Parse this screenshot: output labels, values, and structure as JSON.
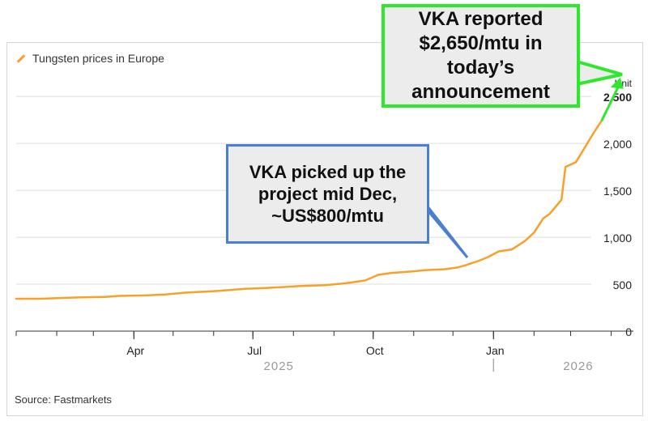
{
  "legend": {
    "label": "Tungsten prices in Europe",
    "color": "#f7a02a"
  },
  "source": "Source: Fastmarkets",
  "callouts": {
    "blue": "VKA picked up the\nproject mid Dec,\n~US$800/mtu",
    "green": "VKA reported\n$2,650/mtu in\ntoday’s\nannouncement"
  },
  "colors": {
    "line": "#f7a02a",
    "blue_callout": "#4a7fd1",
    "green_callout": "#2ee82e"
  },
  "chart_data": {
    "type": "line",
    "title": "",
    "unit_label": "Unit",
    "series": [
      {
        "name": "Tungsten prices in Europe",
        "x": [
          "2025-01-01",
          "2025-01-20",
          "2025-02-10",
          "2025-02-20",
          "2025-03-10",
          "2025-03-20",
          "2025-04-10",
          "2025-04-25",
          "2025-05-10",
          "2025-05-25",
          "2025-06-05",
          "2025-06-25",
          "2025-07-10",
          "2025-07-25",
          "2025-08-05",
          "2025-08-25",
          "2025-09-10",
          "2025-09-25",
          "2025-10-05",
          "2025-10-15",
          "2025-10-30",
          "2025-11-10",
          "2025-11-25",
          "2025-12-05",
          "2025-12-10",
          "2025-12-20",
          "2025-12-28",
          "2026-01-05",
          "2026-01-15",
          "2026-01-25",
          "2026-02-01",
          "2026-02-08",
          "2026-02-13",
          "2026-02-16",
          "2026-02-22",
          "2026-02-25",
          "2026-03-05",
          "2026-03-18",
          "2026-03-25"
        ],
        "y": [
          345,
          345,
          355,
          360,
          365,
          375,
          380,
          390,
          410,
          420,
          430,
          450,
          460,
          470,
          480,
          490,
          510,
          540,
          600,
          620,
          635,
          650,
          660,
          680,
          700,
          745,
          790,
          850,
          870,
          960,
          1050,
          1200,
          1250,
          1300,
          1400,
          1750,
          1800,
          2100,
          2250
        ]
      },
      {
        "name": "",
        "x": [
          "2026-03-25",
          "2026-04-08"
        ],
        "y": [
          2250,
          2650
        ]
      }
    ],
    "y_ticks": [
      0,
      500,
      1000,
      1500,
      2000,
      2500
    ],
    "y_tick_labels": [
      "0",
      "500",
      "1,000",
      "1,500",
      "2,000",
      "2,500"
    ],
    "ylim": [
      0,
      2700
    ],
    "x_tick_labels": [
      {
        "date": "2025-04-01",
        "label": "Apr"
      },
      {
        "date": "2025-07-01",
        "label": "Jul"
      },
      {
        "date": "2025-10-01",
        "label": "Oct"
      },
      {
        "date": "2026-01-01",
        "label": "Jan"
      }
    ],
    "year_labels": [
      {
        "date": "2025-07-01",
        "label": "2025"
      },
      {
        "date": "2026-02-15",
        "label": "2026"
      }
    ],
    "xlim": [
      "2025-01-01",
      "2026-04-18"
    ],
    "grid": "horizontal",
    "legend_position": "top-left"
  }
}
